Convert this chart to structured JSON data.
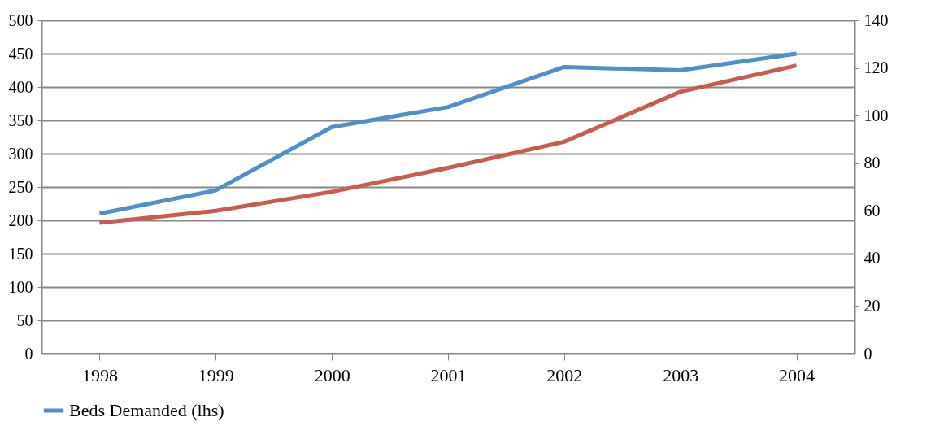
{
  "chart_data": {
    "type": "line",
    "categories": [
      "1998",
      "1999",
      "2000",
      "2001",
      "2002",
      "2003",
      "2004"
    ],
    "series": [
      {
        "name": "Beds Demanded (lhs)",
        "color": "#4f8fcc",
        "values": [
          210,
          245,
          340,
          370,
          430,
          425,
          450
        ]
      },
      {
        "color": "#cc5a4e",
        "axis": "y2",
        "values": [
          55,
          60,
          68,
          78,
          89,
          110,
          121
        ]
      }
    ],
    "ylim": [
      0,
      500
    ],
    "yticks": [
      0,
      50,
      100,
      150,
      200,
      250,
      300,
      350,
      400,
      450,
      500
    ],
    "y2lim": [
      0,
      140
    ],
    "y2ticks": [
      0,
      20,
      40,
      60,
      80,
      100,
      120,
      140
    ],
    "grid": "y",
    "legend": "bottom",
    "marker": "none",
    "line_style": "solid"
  }
}
